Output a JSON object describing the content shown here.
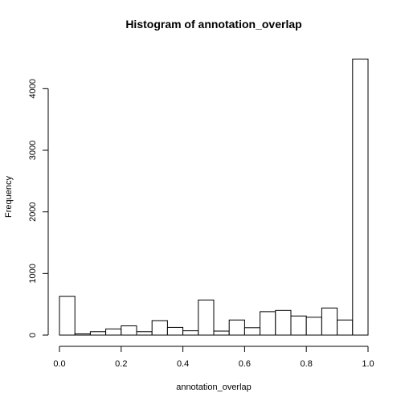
{
  "chart_data": {
    "type": "bar",
    "title": "Histogram of annotation_overlap",
    "xlabel": "annotation_overlap",
    "ylabel": "Frequency",
    "xlim": [
      0.0,
      1.0
    ],
    "ylim": [
      0,
      4500
    ],
    "grid": false,
    "bins": [
      {
        "x0": 0.0,
        "x1": 0.05,
        "count": 630
      },
      {
        "x0": 0.05,
        "x1": 0.1,
        "count": 20
      },
      {
        "x0": 0.1,
        "x1": 0.15,
        "count": 55
      },
      {
        "x0": 0.15,
        "x1": 0.2,
        "count": 100
      },
      {
        "x0": 0.2,
        "x1": 0.25,
        "count": 150
      },
      {
        "x0": 0.25,
        "x1": 0.3,
        "count": 55
      },
      {
        "x0": 0.3,
        "x1": 0.35,
        "count": 235
      },
      {
        "x0": 0.35,
        "x1": 0.4,
        "count": 125
      },
      {
        "x0": 0.4,
        "x1": 0.45,
        "count": 70
      },
      {
        "x0": 0.45,
        "x1": 0.5,
        "count": 570
      },
      {
        "x0": 0.5,
        "x1": 0.55,
        "count": 65
      },
      {
        "x0": 0.55,
        "x1": 0.6,
        "count": 245
      },
      {
        "x0": 0.6,
        "x1": 0.65,
        "count": 120
      },
      {
        "x0": 0.65,
        "x1": 0.7,
        "count": 380
      },
      {
        "x0": 0.7,
        "x1": 0.75,
        "count": 400
      },
      {
        "x0": 0.75,
        "x1": 0.8,
        "count": 310
      },
      {
        "x0": 0.8,
        "x1": 0.85,
        "count": 290
      },
      {
        "x0": 0.85,
        "x1": 0.9,
        "count": 440
      },
      {
        "x0": 0.9,
        "x1": 0.95,
        "count": 245
      },
      {
        "x0": 0.95,
        "x1": 1.0,
        "count": 4480
      }
    ],
    "x_ticks": [
      {
        "value": 0.0,
        "label": "0.0"
      },
      {
        "value": 0.2,
        "label": "0.2"
      },
      {
        "value": 0.4,
        "label": "0.4"
      },
      {
        "value": 0.6,
        "label": "0.6"
      },
      {
        "value": 0.8,
        "label": "0.8"
      },
      {
        "value": 1.0,
        "label": "1.0"
      }
    ],
    "y_ticks": [
      {
        "value": 0,
        "label": "0"
      },
      {
        "value": 1000,
        "label": "1000"
      },
      {
        "value": 2000,
        "label": "2000"
      },
      {
        "value": 3000,
        "label": "3000"
      },
      {
        "value": 4000,
        "label": "4000"
      }
    ],
    "colors": {
      "bar_fill": "#ffffff",
      "bar_stroke": "#000000",
      "axis": "#000000",
      "background": "#ffffff"
    }
  }
}
